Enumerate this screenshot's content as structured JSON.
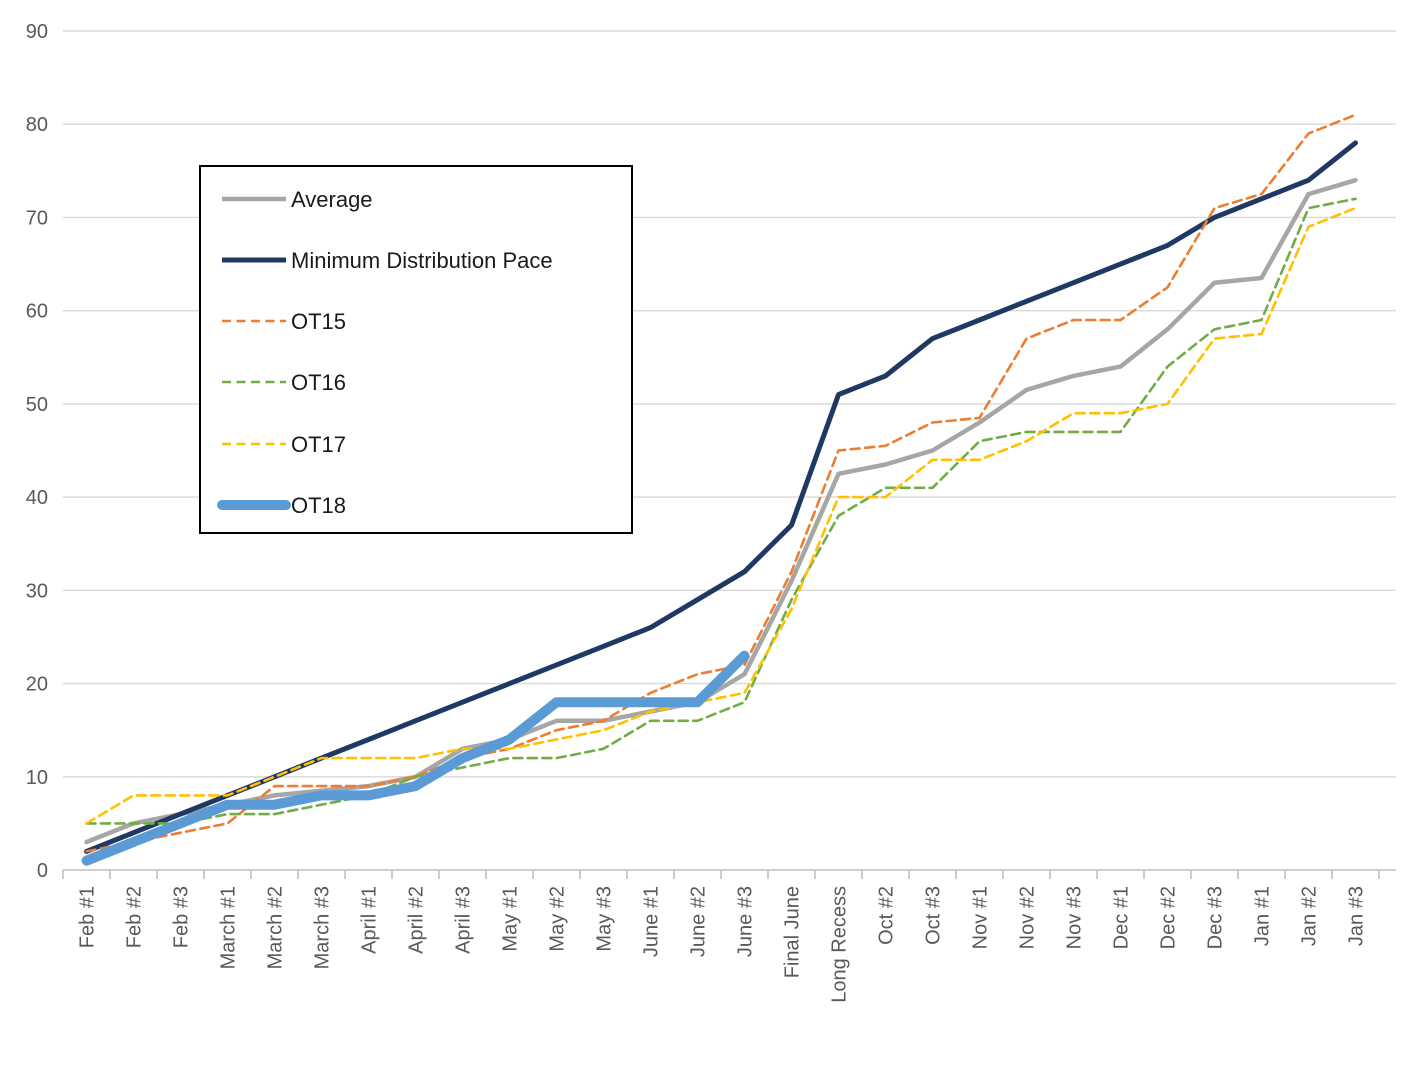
{
  "chart_data": {
    "type": "line",
    "title": "",
    "xlabel": "",
    "ylabel": "",
    "grid": true,
    "legend_position": "upper-left-box",
    "y_axis": {
      "min": 0,
      "max": 90,
      "step": 10,
      "tick_labels": [
        "0",
        "10",
        "20",
        "30",
        "40",
        "50",
        "60",
        "70",
        "80",
        "90"
      ]
    },
    "categories": [
      "Feb #1",
      "Feb #2",
      "Feb #3",
      "March #1",
      "March #2",
      "March #3",
      "April #1",
      "April #2",
      "April #3",
      "May #1",
      "May #2",
      "May #3",
      "June #1",
      "June #2",
      "June #3",
      "Final June",
      "Long Recess",
      "Oct #2",
      "Oct #3",
      "Nov #1",
      "Nov #2",
      "Nov #3",
      "Dec #1",
      "Dec #2",
      "Dec #3",
      "Jan #1",
      "Jan #2",
      "Jan #3"
    ],
    "series": [
      {
        "name": "Average",
        "color": "#A6A6A6",
        "style": "solid",
        "width": 4.5,
        "values": [
          3,
          5,
          6,
          7,
          8,
          8.5,
          9,
          10,
          13,
          14,
          16,
          16,
          17,
          18,
          21,
          31,
          42.5,
          43.5,
          45,
          48,
          51.5,
          53,
          54,
          58,
          63,
          63.5,
          72.5,
          74
        ]
      },
      {
        "name": "Minimum Distribution Pace",
        "color": "#1F3864",
        "style": "solid",
        "width": 5,
        "values": [
          2,
          4,
          6,
          8,
          10,
          12,
          14,
          16,
          18,
          20,
          22,
          24,
          26,
          29,
          32,
          37,
          51,
          53,
          57,
          59,
          61,
          63,
          65,
          67,
          70,
          72,
          74,
          78
        ]
      },
      {
        "name": "OT15",
        "color": "#ED7D31",
        "style": "dashed",
        "width": 2.6,
        "values": [
          2,
          3,
          4,
          5,
          9,
          9,
          9,
          10,
          12,
          13,
          15,
          16,
          19,
          21,
          22,
          32,
          45,
          45.5,
          48,
          48.5,
          57,
          59,
          59,
          62.5,
          71,
          72.5,
          79,
          81
        ]
      },
      {
        "name": "OT16",
        "color": "#70AD47",
        "style": "dashed",
        "width": 2.6,
        "values": [
          5,
          5,
          5,
          6,
          6,
          7,
          8,
          10,
          11,
          12,
          12,
          13,
          16,
          16,
          18,
          29,
          38,
          41,
          41,
          46,
          47,
          47,
          47,
          54,
          58,
          59,
          71,
          72
        ]
      },
      {
        "name": "OT17",
        "color": "#FFC000",
        "style": "dashed",
        "width": 2.6,
        "values": [
          5,
          8,
          8,
          8,
          10,
          12,
          12,
          12,
          13,
          13,
          14,
          15,
          17,
          18,
          19,
          28,
          40,
          40,
          44,
          44,
          46,
          49,
          49,
          50,
          57,
          57.5,
          69,
          71
        ]
      },
      {
        "name": "OT18",
        "color": "#5B9BD5",
        "style": "solid",
        "width": 10,
        "values": [
          1,
          3,
          5,
          7,
          7,
          8,
          8,
          9,
          12,
          14,
          18,
          18,
          18,
          18,
          23
        ]
      }
    ]
  },
  "colors": {
    "background": "#FFFFFF",
    "gridline": "#D9D9D9",
    "axis_line": "#BFBFBF",
    "axis_label": "#595959",
    "legend_border": "#000000",
    "legend_fill": "#FFFFFF",
    "legend_text": "#1A1A1A"
  }
}
